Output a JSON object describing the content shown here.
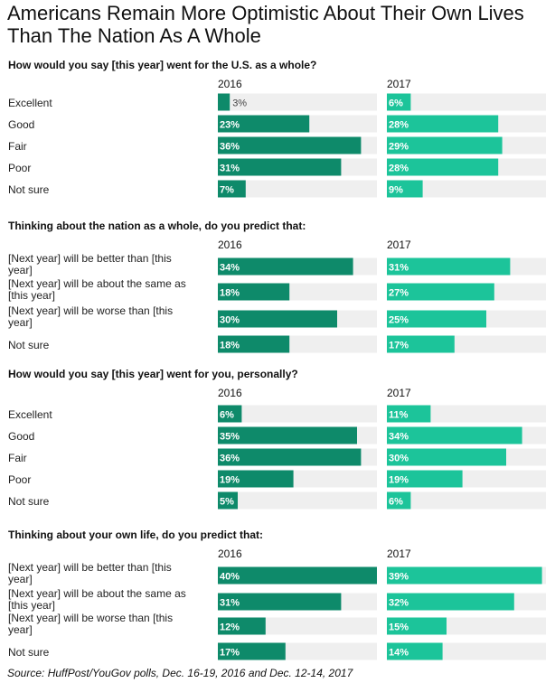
{
  "title": "Americans Remain More Optimistic About Their Own Lives Than The Nation As A Whole",
  "source": "Source: HuffPost/YouGov polls, Dec. 16-19, 2016 and Dec. 12-14, 2017",
  "colors": {
    "y2016": "#0e8a6a",
    "y2017": "#1cc49a",
    "track": "#efefef",
    "label_dark": "#ffffff",
    "label_light": "#444444"
  },
  "chart_data": [
    {
      "type": "bar",
      "title": "How would you say [this year] went for the U.S. as a whole?",
      "categories": [
        "Excellent",
        "Good",
        "Fair",
        "Poor",
        "Not sure"
      ],
      "series": [
        {
          "name": "2016",
          "values": [
            3,
            23,
            36,
            31,
            7
          ]
        },
        {
          "name": "2017",
          "values": [
            6,
            28,
            29,
            28,
            9
          ]
        }
      ],
      "unit": "%",
      "xlim": [
        0,
        40
      ]
    },
    {
      "type": "bar",
      "title": "Thinking about the nation as a whole, do you predict that:",
      "categories": [
        "[Next year] will be better than [this year]",
        "[Next year] will be about the same as [this year]",
        "[Next year] will be worse than [this year]",
        "Not sure"
      ],
      "series": [
        {
          "name": "2016",
          "values": [
            34,
            18,
            30,
            18
          ]
        },
        {
          "name": "2017",
          "values": [
            31,
            27,
            25,
            17
          ]
        }
      ],
      "unit": "%",
      "xlim": [
        0,
        40
      ]
    },
    {
      "type": "bar",
      "title": "How would you say [this year] went for you, personally?",
      "categories": [
        "Excellent",
        "Good",
        "Fair",
        "Poor",
        "Not sure"
      ],
      "series": [
        {
          "name": "2016",
          "values": [
            6,
            35,
            36,
            19,
            5
          ]
        },
        {
          "name": "2017",
          "values": [
            11,
            34,
            30,
            19,
            6
          ]
        }
      ],
      "unit": "%",
      "xlim": [
        0,
        40
      ]
    },
    {
      "type": "bar",
      "title": "Thinking about your own life, do you predict that:",
      "categories": [
        "[Next year] will be better than [this year]",
        "[Next year] will be about the same as [this year]",
        "[Next year] will be worse than [this year]",
        "Not sure"
      ],
      "series": [
        {
          "name": "2016",
          "values": [
            40,
            31,
            12,
            17
          ]
        },
        {
          "name": "2017",
          "values": [
            39,
            32,
            15,
            14
          ]
        }
      ],
      "unit": "%",
      "xlim": [
        0,
        40
      ]
    }
  ]
}
